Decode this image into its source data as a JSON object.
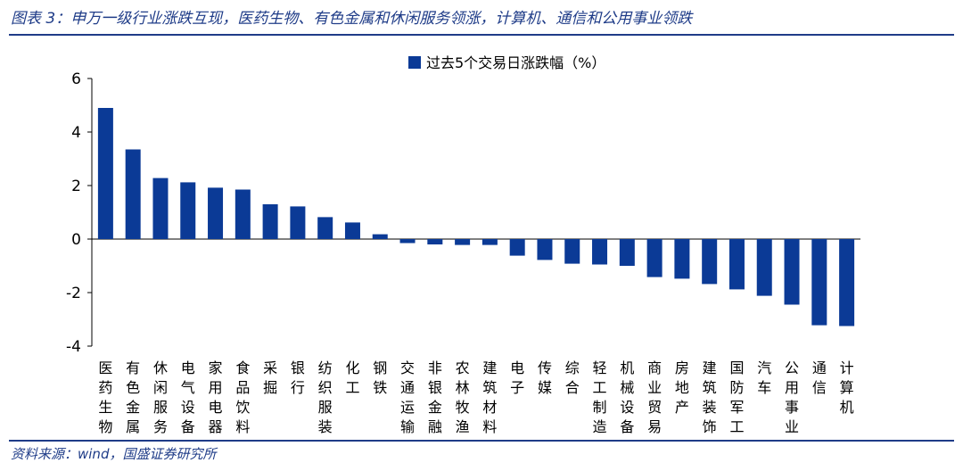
{
  "title": "图表 3：申万一级行业涨跌互现，医药生物、有色金属和休闲服务领涨，计算机、通信和公用事业领跌",
  "source": "资料来源：wind，国盛证券研究所",
  "colors": {
    "bar": "#0b3a96",
    "accent": "#1f3c88"
  },
  "chart_data": {
    "type": "bar",
    "categories": [
      "医药生物",
      "有色金属",
      "休闲服务",
      "电气设备",
      "家用电器",
      "食品饮料",
      "采掘",
      "银行",
      "纺织服装",
      "化工",
      "钢铁",
      "交通运输",
      "非银金融",
      "农林牧渔",
      "建筑材料",
      "电子",
      "传媒",
      "综合",
      "轻工制造",
      "机械设备",
      "商业贸易",
      "房地产",
      "建筑装饰",
      "国防军工",
      "汽车",
      "公用事业",
      "通信",
      "计算机"
    ],
    "series": [
      {
        "name": "过去5个交易日涨跌幅（%）",
        "values": [
          4.9,
          3.35,
          2.28,
          2.12,
          1.92,
          1.85,
          1.3,
          1.22,
          0.82,
          0.62,
          0.18,
          -0.15,
          -0.2,
          -0.22,
          -0.22,
          -0.62,
          -0.78,
          -0.92,
          -0.95,
          -1.0,
          -1.42,
          -1.48,
          -1.68,
          -1.88,
          -2.12,
          -2.45,
          -3.22,
          -3.25
        ]
      }
    ],
    "yticks": [
      "6",
      "4",
      "2",
      "0",
      "-2",
      "-4"
    ],
    "ylim": [
      -4,
      6
    ],
    "legend_position": "top-center",
    "grid": false
  }
}
